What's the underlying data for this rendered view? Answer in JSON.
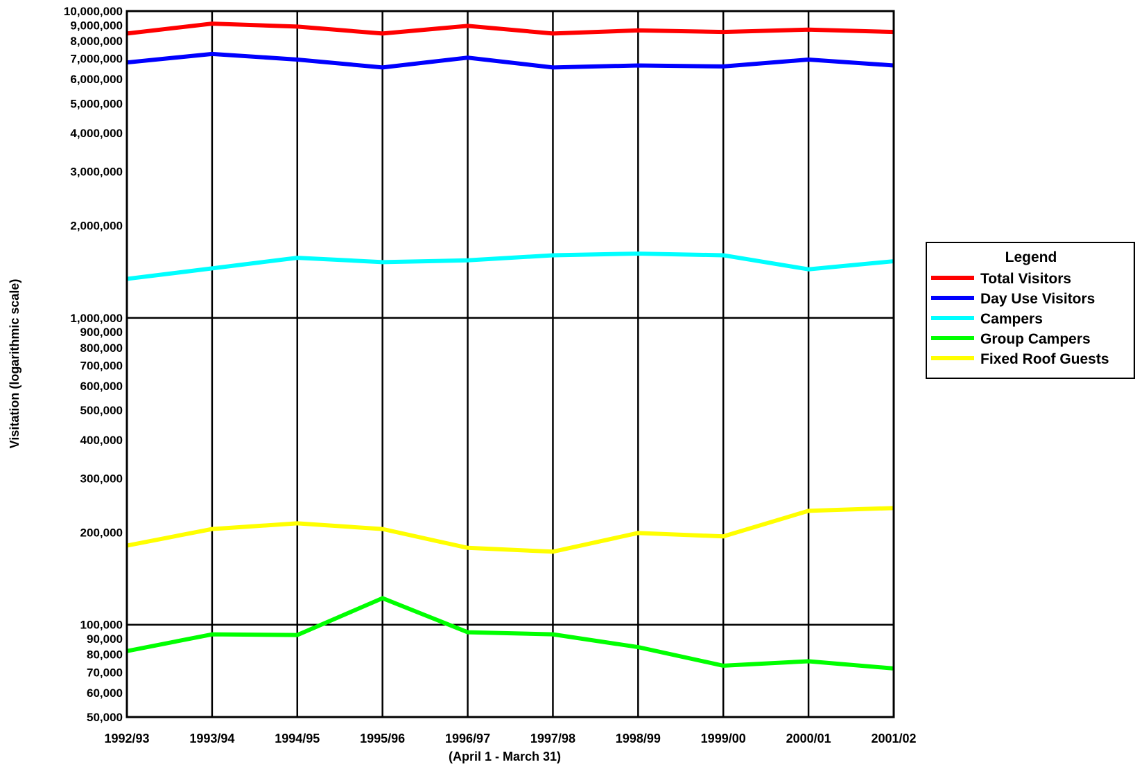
{
  "chart_data": {
    "type": "line",
    "ylabel": "Visitation (logarithmic scale)",
    "xlabel": "(April 1 - March 31)",
    "y_scale": "log",
    "ylim": [
      50000,
      10000000
    ],
    "grid": true,
    "categories": [
      "1992/93",
      "1993/94",
      "1994/95",
      "1995/96",
      "1996/97",
      "1997/98",
      "1998/99",
      "1999/00",
      "2000/01",
      "2001/02"
    ],
    "yticks": [
      {
        "value": 10000000,
        "label": "10,000,000"
      },
      {
        "value": 9000000,
        "label": "9,000,000"
      },
      {
        "value": 8000000,
        "label": "8,000,000"
      },
      {
        "value": 7000000,
        "label": "7,000,000"
      },
      {
        "value": 6000000,
        "label": "6,000,000"
      },
      {
        "value": 5000000,
        "label": "5,000,000"
      },
      {
        "value": 4000000,
        "label": "4,000,000"
      },
      {
        "value": 3000000,
        "label": "3,000,000"
      },
      {
        "value": 2000000,
        "label": "2,000,000"
      },
      {
        "value": 1000000,
        "label": "1,000,000"
      },
      {
        "value": 900000,
        "label": "900,000"
      },
      {
        "value": 800000,
        "label": "800,000"
      },
      {
        "value": 700000,
        "label": "700,000"
      },
      {
        "value": 600000,
        "label": "600,000"
      },
      {
        "value": 500000,
        "label": "500,000"
      },
      {
        "value": 400000,
        "label": "400,000"
      },
      {
        "value": 300000,
        "label": "300,000"
      },
      {
        "value": 200000,
        "label": "200,000"
      },
      {
        "value": 100000,
        "label": "100,000"
      },
      {
        "value": 90000,
        "label": "90,000"
      },
      {
        "value": 80000,
        "label": "80,000"
      },
      {
        "value": 70000,
        "label": "70,000"
      },
      {
        "value": 60000,
        "label": "60,000"
      },
      {
        "value": 50000,
        "label": "50,000"
      }
    ],
    "major_gridlines": [
      1000000,
      100000
    ],
    "legend": {
      "title": "Legend",
      "position": "right"
    },
    "series": [
      {
        "name": "Total Visitors",
        "color": "#ff0000",
        "values": [
          8450000,
          9100000,
          8900000,
          8450000,
          8950000,
          8450000,
          8650000,
          8550000,
          8700000,
          8550000
        ]
      },
      {
        "name": "Day Use Visitors",
        "color": "#0000ff",
        "values": [
          6800000,
          7250000,
          6950000,
          6550000,
          7050000,
          6550000,
          6650000,
          6600000,
          6950000,
          6650000
        ]
      },
      {
        "name": "Campers",
        "color": "#00ffff",
        "values": [
          1340000,
          1450000,
          1570000,
          1520000,
          1540000,
          1600000,
          1620000,
          1600000,
          1440000,
          1530000
        ]
      },
      {
        "name": "Group Campers",
        "color": "#00ff00",
        "values": [
          82000,
          93000,
          92500,
          122000,
          94500,
          93000,
          84500,
          73500,
          76000,
          72000
        ]
      },
      {
        "name": "Fixed Roof Guests",
        "color": "#ffff00",
        "values": [
          181000,
          205000,
          214000,
          205000,
          178000,
          173000,
          199000,
          194000,
          235000,
          240000
        ]
      }
    ]
  }
}
